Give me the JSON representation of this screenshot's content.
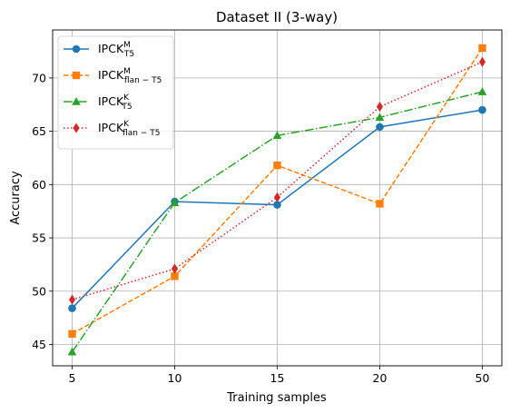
{
  "chart_data": {
    "type": "line",
    "title": "Dataset II (3-way)",
    "xlabel": "Training samples",
    "ylabel": "Accuracy",
    "categories": [
      "5",
      "10",
      "15",
      "20",
      "50"
    ],
    "ylim": [
      43,
      74.5
    ],
    "yticks": [
      45,
      50,
      55,
      60,
      65,
      70
    ],
    "grid": true,
    "legend_position": "top-left",
    "series": [
      {
        "name": "IPCK",
        "sup": "M",
        "sub": "T5",
        "values": [
          48.4,
          58.4,
          58.1,
          65.4,
          67.0
        ],
        "color": "#1f77b4",
        "marker": "circle",
        "linestyle": "solid"
      },
      {
        "name": "IPCK",
        "sup": "M",
        "sub": "flan − T5",
        "values": [
          46.0,
          51.4,
          61.8,
          58.2,
          72.8
        ],
        "color": "#ff7f0e",
        "marker": "square",
        "linestyle": "dashed"
      },
      {
        "name": "IPCK",
        "sup": "K",
        "sub": "T5",
        "values": [
          44.3,
          58.3,
          64.6,
          66.3,
          68.7
        ],
        "color": "#2ca02c",
        "marker": "triangle",
        "linestyle": "dashdot"
      },
      {
        "name": "IPCK",
        "sup": "K",
        "sub": "flan − T5",
        "values": [
          49.2,
          52.1,
          58.8,
          67.3,
          71.5
        ],
        "color": "#d62728",
        "marker": "diamond",
        "linestyle": "dotted"
      }
    ]
  }
}
